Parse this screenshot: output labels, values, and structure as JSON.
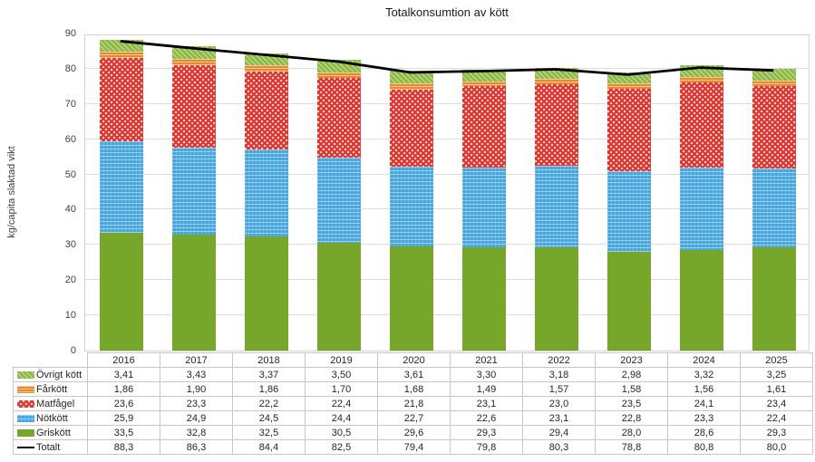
{
  "chart_data": {
    "type": "bar",
    "subtype": "stacked-bars-with-total-line",
    "title": "Totalkonsumtion av kött",
    "ylabel": "kg/capita slaktad vikt",
    "xlabel": "",
    "categories": [
      "2016",
      "2017",
      "2018",
      "2019",
      "2020",
      "2021",
      "2022",
      "2023",
      "2024",
      "2025"
    ],
    "ylim": [
      0,
      90
    ],
    "ytick_step": 10,
    "yticks": [
      0,
      10,
      20,
      30,
      40,
      50,
      60,
      70,
      80,
      90
    ],
    "grid": true,
    "legend_position": "table-rows-left",
    "stack_order_bottom_to_top": [
      "Griskött",
      "Nötkött",
      "Matfågel",
      "Fårkött",
      "Övrigt kött"
    ],
    "series": [
      {
        "name": "Övrigt kött",
        "pattern": "diagonal",
        "color": "#8cba43",
        "values": [
          3.41,
          3.43,
          3.37,
          3.5,
          3.61,
          3.3,
          3.18,
          2.98,
          3.32,
          3.25
        ],
        "display": [
          "3,41",
          "3,43",
          "3,37",
          "3,50",
          "3,61",
          "3,30",
          "3,18",
          "2,98",
          "3,32",
          "3,25"
        ]
      },
      {
        "name": "Fårkött",
        "pattern": "hlines",
        "color": "#e8892f",
        "values": [
          1.86,
          1.9,
          1.86,
          1.7,
          1.68,
          1.49,
          1.57,
          1.58,
          1.56,
          1.61
        ],
        "display": [
          "1,86",
          "1,90",
          "1,86",
          "1,70",
          "1,68",
          "1,49",
          "1,57",
          "1,58",
          "1,56",
          "1,61"
        ]
      },
      {
        "name": "Matfågel",
        "pattern": "dots",
        "color": "#e5332d",
        "values": [
          23.6,
          23.3,
          22.2,
          22.4,
          21.8,
          23.1,
          23.0,
          23.5,
          24.1,
          23.4
        ],
        "display": [
          "23,6",
          "23,3",
          "22,2",
          "22,4",
          "21,8",
          "23,1",
          "23,0",
          "23,5",
          "24,1",
          "23,4"
        ]
      },
      {
        "name": "Nötkött",
        "pattern": "dashes",
        "color": "#41a7e0",
        "values": [
          25.9,
          24.9,
          24.5,
          24.4,
          22.7,
          22.6,
          23.1,
          22.8,
          23.3,
          22.4
        ],
        "display": [
          "25,9",
          "24,9",
          "24,5",
          "24,4",
          "22,7",
          "22,6",
          "23,1",
          "22,8",
          "23,3",
          "22,4"
        ]
      },
      {
        "name": "Griskött",
        "pattern": "solid",
        "color": "#76a72b",
        "values": [
          33.5,
          32.8,
          32.5,
          30.5,
          29.6,
          29.3,
          29.4,
          28.0,
          28.6,
          29.3
        ],
        "display": [
          "33,5",
          "32,8",
          "32,5",
          "30,5",
          "29,6",
          "29,3",
          "29,4",
          "28,0",
          "28,6",
          "29,3"
        ]
      }
    ],
    "line_series": {
      "name": "Totalt",
      "color": "#000000",
      "values": [
        88.3,
        86.3,
        84.4,
        82.5,
        79.4,
        79.8,
        80.3,
        78.8,
        80.8,
        80.0
      ],
      "display": [
        "88,3",
        "86,3",
        "84,4",
        "82,5",
        "79,4",
        "79,8",
        "80,3",
        "78,8",
        "80,8",
        "80,0"
      ]
    }
  }
}
